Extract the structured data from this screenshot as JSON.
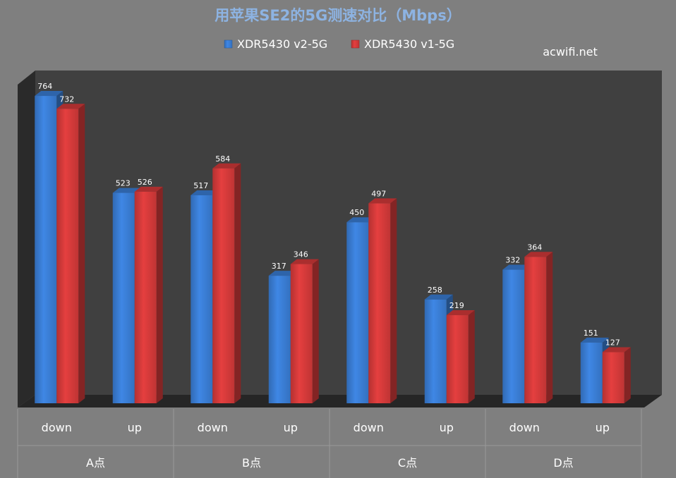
{
  "chart_data": {
    "type": "bar",
    "title": "用苹果SE2的5G测速对比（Mbps）",
    "watermark": "acwifi.net",
    "groups": [
      "A点",
      "B点",
      "C点",
      "D点"
    ],
    "categories": [
      "down",
      "up",
      "down",
      "up",
      "down",
      "up",
      "down",
      "up"
    ],
    "series": [
      {
        "name": "XDR5430 v2-5G",
        "color": "#3a7dd4",
        "values": [
          764,
          523,
          517,
          317,
          450,
          258,
          332,
          151
        ]
      },
      {
        "name": "XDR5430 v1-5G",
        "color": "#d43a3a",
        "values": [
          732,
          526,
          584,
          346,
          497,
          219,
          364,
          127
        ]
      }
    ],
    "ylim": [
      0,
      800
    ],
    "grid": false,
    "legend_position": "top-center",
    "style": "3d-column"
  }
}
